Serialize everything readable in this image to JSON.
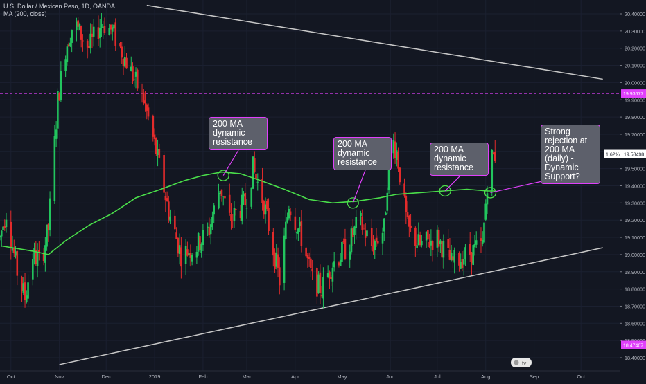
{
  "legend": {
    "symbol_line": "U.S. Dollar / Mexican Peso, 1D, OANDA",
    "indicator_line": "MA (200, close)"
  },
  "colors": {
    "background": "#131722",
    "bull": "#22c55e",
    "bear": "#e32b2b",
    "ma": "#4ade4a",
    "level_line": "#e040fb",
    "trendline": "#c8c8c8",
    "callout_bg": "#5d606b",
    "callout_border": "#e040fb"
  },
  "callouts": [
    {
      "text": "200 MA\ndynamic\nresistance"
    },
    {
      "text": "200 MA\ndynamic\nresistance"
    },
    {
      "text": "200 MA\ndynamic\nresistance"
    },
    {
      "text": "Strong\nrejection at\n200 MA\n(daily) -\nDynamic\nSupport?"
    }
  ],
  "chart_data": {
    "type": "candlestick",
    "title": "U.S. Dollar / Mexican Peso, 1D, OANDA",
    "indicator": "MA (200, close)",
    "x_ticks": [
      "Oct",
      "Nov",
      "Dec",
      "2019",
      "Feb",
      "Mar",
      "Apr",
      "May",
      "Jun",
      "Jul",
      "Aug",
      "Sep",
      "Oct"
    ],
    "y_ticks": [
      "20.40000",
      "20.30000",
      "20.20000",
      "20.10000",
      "20.00000",
      "19.90000",
      "19.80000",
      "19.70000",
      "19.60000",
      "19.50000",
      "19.40000",
      "19.30000",
      "19.20000",
      "19.10000",
      "19.00000",
      "18.90000",
      "18.80000",
      "18.70000",
      "18.60000",
      "18.50000",
      "18.40000"
    ],
    "ylim": [
      18.35,
      20.44
    ],
    "price_labels": [
      {
        "value": 19.93677,
        "text": "19.93677"
      },
      {
        "value": 19.58498,
        "text": "19.58498",
        "change": "1.62%"
      },
      {
        "value": 18.47467,
        "text": "18.47467"
      }
    ],
    "horizontal_levels": [
      19.93677,
      18.47467
    ],
    "trendlines": [
      {
        "from": [
          "2018-12-27",
          20.45
        ],
        "to": [
          "2019-10-15",
          20.02
        ]
      },
      {
        "from": [
          "2018-11-01",
          18.36
        ],
        "to": [
          "2019-10-15",
          19.04
        ]
      }
    ],
    "ma200": [
      [
        "2018-09-25",
        19.05
      ],
      [
        "2018-10-15",
        19.02
      ],
      [
        "2018-10-25",
        19.0
      ],
      [
        "2018-11-05",
        19.08
      ],
      [
        "2018-11-20",
        19.17
      ],
      [
        "2018-12-05",
        19.24
      ],
      [
        "2018-12-20",
        19.33
      ],
      [
        "2019-01-05",
        19.38
      ],
      [
        "2019-01-20",
        19.43
      ],
      [
        "2019-02-01",
        19.46
      ],
      [
        "2019-02-13",
        19.48
      ],
      [
        "2019-02-25",
        19.47
      ],
      [
        "2019-03-10",
        19.43
      ],
      [
        "2019-03-25",
        19.38
      ],
      [
        "2019-04-10",
        19.32
      ],
      [
        "2019-04-25",
        19.3
      ],
      [
        "2019-05-10",
        19.31
      ],
      [
        "2019-05-25",
        19.33
      ],
      [
        "2019-06-05",
        19.35
      ],
      [
        "2019-06-20",
        19.36
      ],
      [
        "2019-07-05",
        19.37
      ],
      [
        "2019-07-20",
        19.38
      ],
      [
        "2019-08-02",
        19.37
      ],
      [
        "2019-08-07",
        19.37
      ]
    ],
    "price_path": [
      [
        "2018-09-24",
        19.1
      ],
      [
        "2018-09-28",
        19.25
      ],
      [
        "2018-10-05",
        18.9
      ],
      [
        "2018-10-10",
        18.75
      ],
      [
        "2018-10-15",
        19.0
      ],
      [
        "2018-10-20",
        18.95
      ],
      [
        "2018-10-25",
        19.15
      ],
      [
        "2018-10-31",
        19.9
      ],
      [
        "2018-11-05",
        20.2
      ],
      [
        "2018-11-10",
        20.35
      ],
      [
        "2018-11-20",
        20.2
      ],
      [
        "2018-11-28",
        20.35
      ],
      [
        "2018-12-05",
        20.3
      ],
      [
        "2018-12-15",
        20.1
      ],
      [
        "2018-12-25",
        19.9
      ],
      [
        "2019-01-02",
        19.6
      ],
      [
        "2019-01-10",
        19.25
      ],
      [
        "2019-01-18",
        19.0
      ],
      [
        "2019-01-28",
        19.05
      ],
      [
        "2019-02-05",
        19.15
      ],
      [
        "2019-02-12",
        19.4
      ],
      [
        "2019-02-18",
        19.2
      ],
      [
        "2019-02-28",
        19.3
      ],
      [
        "2019-03-05",
        19.5
      ],
      [
        "2019-03-12",
        19.3
      ],
      [
        "2019-03-22",
        18.85
      ],
      [
        "2019-03-28",
        19.3
      ],
      [
        "2019-04-05",
        19.1
      ],
      [
        "2019-04-12",
        18.85
      ],
      [
        "2019-04-18",
        18.8
      ],
      [
        "2019-04-25",
        18.95
      ],
      [
        "2019-05-05",
        19.05
      ],
      [
        "2019-05-12",
        19.2
      ],
      [
        "2019-05-20",
        19.05
      ],
      [
        "2019-05-28",
        19.15
      ],
      [
        "2019-06-01",
        19.7
      ],
      [
        "2019-06-05",
        19.6
      ],
      [
        "2019-06-12",
        19.15
      ],
      [
        "2019-06-20",
        19.05
      ],
      [
        "2019-07-01",
        19.1
      ],
      [
        "2019-07-10",
        18.95
      ],
      [
        "2019-07-20",
        19.0
      ],
      [
        "2019-07-30",
        19.05
      ],
      [
        "2019-08-03",
        19.55
      ],
      [
        "2019-08-07",
        19.58
      ]
    ]
  }
}
